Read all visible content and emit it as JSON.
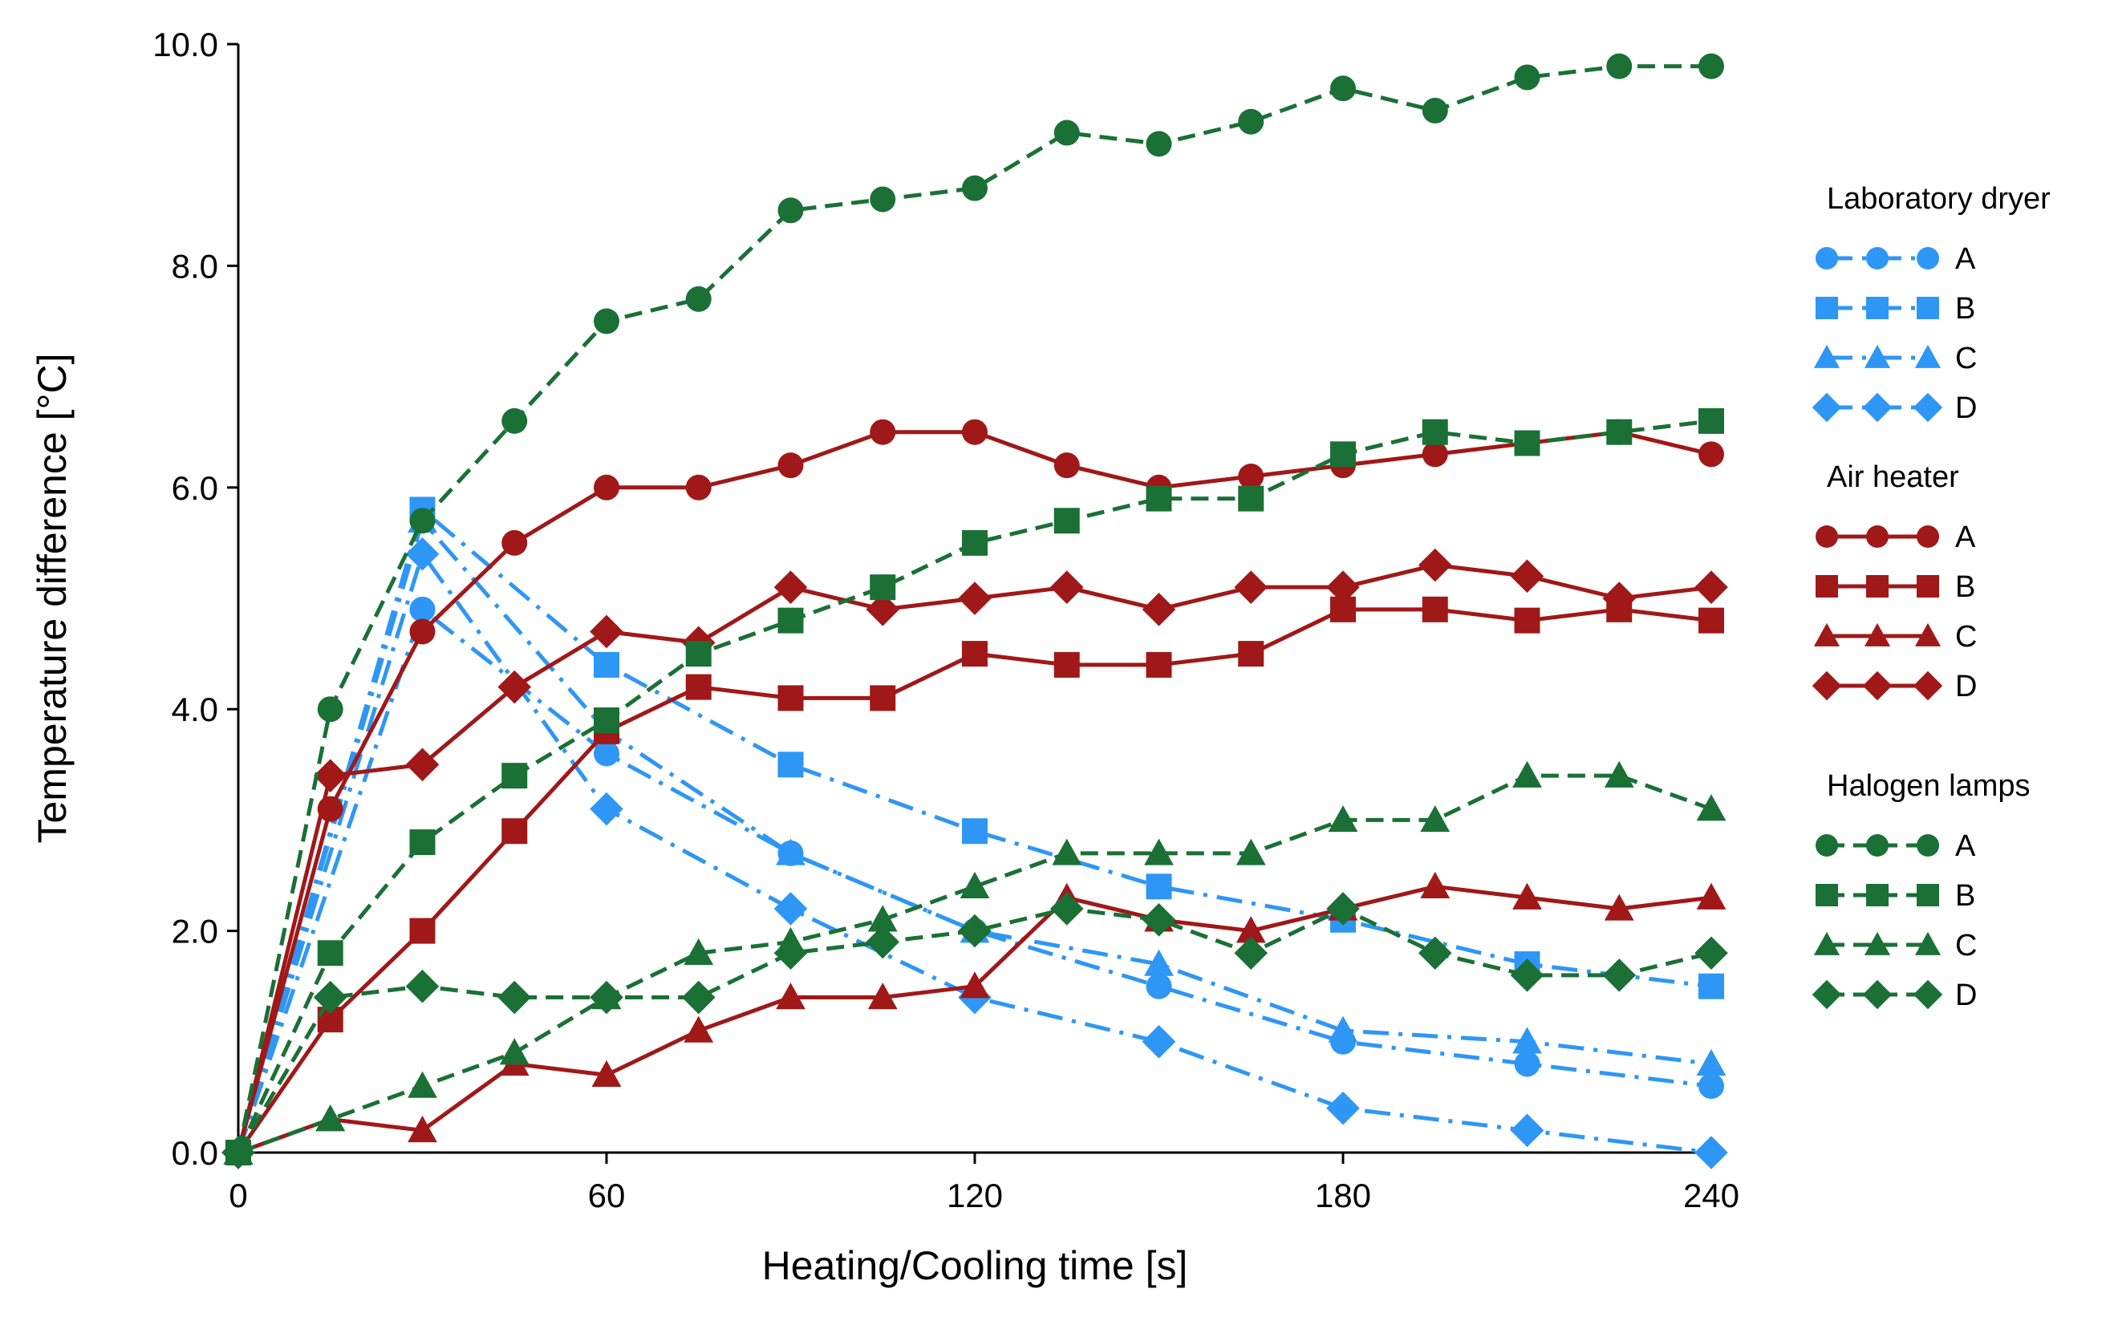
{
  "chart_data": {
    "type": "line",
    "title": "",
    "xlabel": "Heating/Cooling time [s]",
    "ylabel": "Temperature difference [°C]",
    "xlim": [
      0,
      240
    ],
    "ylim": [
      0,
      10
    ],
    "xticks": [
      0,
      60,
      120,
      180,
      240
    ],
    "xtick_labels": [
      "0",
      "60",
      "120",
      "180",
      "240"
    ],
    "yticks": [
      0,
      2,
      4,
      6,
      8,
      10
    ],
    "ytick_labels": [
      "0.0",
      "2.0",
      "4.0",
      "6.0",
      "8.0",
      "10.0"
    ],
    "grid": false,
    "legend_position": "right",
    "groups": [
      {
        "name": "Laboratory dryer",
        "color": "#2e96f5",
        "line_style": "dash-dot",
        "series": [
          {
            "name": "A",
            "marker": "circle",
            "x": [
              0,
              30,
              60,
              90,
              120,
              150,
              180,
              210,
              240
            ],
            "y": [
              0,
              4.9,
              3.6,
              2.7,
              2.0,
              1.5,
              1.0,
              0.8,
              0.6
            ]
          },
          {
            "name": "B",
            "marker": "square",
            "x": [
              0,
              30,
              60,
              90,
              120,
              150,
              180,
              210,
              240
            ],
            "y": [
              0,
              5.8,
              4.4,
              3.5,
              2.9,
              2.4,
              2.1,
              1.7,
              1.5
            ]
          },
          {
            "name": "C",
            "marker": "triangle",
            "x": [
              0,
              30,
              60,
              90,
              120,
              150,
              180,
              210,
              240
            ],
            "y": [
              0,
              5.7,
              3.8,
              2.7,
              2.0,
              1.7,
              1.1,
              1.0,
              0.8
            ]
          },
          {
            "name": "D",
            "marker": "diamond",
            "x": [
              0,
              30,
              60,
              90,
              120,
              150,
              180,
              210,
              240
            ],
            "y": [
              0,
              5.4,
              3.1,
              2.2,
              1.4,
              1.0,
              0.4,
              0.2,
              0.0
            ]
          }
        ]
      },
      {
        "name": "Air heater",
        "color": "#a01818",
        "line_style": "solid",
        "series": [
          {
            "name": "A",
            "marker": "circle",
            "x": [
              0,
              15,
              30,
              45,
              60,
              75,
              90,
              105,
              120,
              135,
              150,
              165,
              180,
              195,
              210,
              225,
              240
            ],
            "y": [
              0,
              3.1,
              4.7,
              5.5,
              6.0,
              6.0,
              6.2,
              6.5,
              6.5,
              6.2,
              6.0,
              6.1,
              6.2,
              6.3,
              6.4,
              6.5,
              6.3
            ]
          },
          {
            "name": "B",
            "marker": "square",
            "x": [
              0,
              15,
              30,
              45,
              60,
              75,
              90,
              105,
              120,
              135,
              150,
              165,
              180,
              195,
              210,
              225,
              240
            ],
            "y": [
              0,
              1.2,
              2.0,
              2.9,
              3.8,
              4.2,
              4.1,
              4.1,
              4.5,
              4.4,
              4.4,
              4.5,
              4.9,
              4.9,
              4.8,
              4.9,
              4.8
            ]
          },
          {
            "name": "C",
            "marker": "triangle",
            "x": [
              0,
              15,
              30,
              45,
              60,
              75,
              90,
              105,
              120,
              135,
              150,
              165,
              180,
              195,
              210,
              225,
              240
            ],
            "y": [
              0,
              0.3,
              0.2,
              0.8,
              0.7,
              1.1,
              1.4,
              1.4,
              1.5,
              2.3,
              2.1,
              2.0,
              2.2,
              2.4,
              2.3,
              2.2,
              2.3
            ]
          },
          {
            "name": "D",
            "marker": "diamond",
            "x": [
              0,
              15,
              30,
              45,
              60,
              75,
              90,
              105,
              120,
              135,
              150,
              165,
              180,
              195,
              210,
              225,
              240
            ],
            "y": [
              0,
              3.4,
              3.5,
              4.2,
              4.7,
              4.6,
              5.1,
              4.9,
              5.0,
              5.1,
              4.9,
              5.1,
              5.1,
              5.3,
              5.2,
              5.0,
              5.1
            ]
          }
        ]
      },
      {
        "name": "Halogen lamps",
        "color": "#1a7035",
        "line_style": "dashed",
        "series": [
          {
            "name": "A",
            "marker": "circle",
            "x": [
              0,
              15,
              30,
              45,
              60,
              75,
              90,
              105,
              120,
              135,
              150,
              165,
              180,
              195,
              210,
              225,
              240
            ],
            "y": [
              0,
              4.0,
              5.7,
              6.6,
              7.5,
              7.7,
              8.5,
              8.6,
              8.7,
              9.2,
              9.1,
              9.3,
              9.6,
              9.4,
              9.7,
              9.8,
              9.8
            ]
          },
          {
            "name": "B",
            "marker": "square",
            "x": [
              0,
              15,
              30,
              45,
              60,
              75,
              90,
              105,
              120,
              135,
              150,
              165,
              180,
              195,
              210,
              225,
              240
            ],
            "y": [
              0,
              1.8,
              2.8,
              3.4,
              3.9,
              4.5,
              4.8,
              5.1,
              5.5,
              5.7,
              5.9,
              5.9,
              6.3,
              6.5,
              6.4,
              6.5,
              6.6
            ]
          },
          {
            "name": "C",
            "marker": "triangle",
            "x": [
              0,
              15,
              30,
              45,
              60,
              75,
              90,
              105,
              120,
              135,
              150,
              165,
              180,
              195,
              210,
              225,
              240
            ],
            "y": [
              0,
              0.3,
              0.6,
              0.9,
              1.4,
              1.8,
              1.9,
              2.1,
              2.4,
              2.7,
              2.7,
              2.7,
              3.0,
              3.0,
              3.4,
              3.4,
              3.1
            ]
          },
          {
            "name": "D",
            "marker": "diamond",
            "x": [
              0,
              15,
              30,
              45,
              60,
              75,
              90,
              105,
              120,
              135,
              150,
              165,
              180,
              195,
              210,
              225,
              240
            ],
            "y": [
              0,
              1.4,
              1.5,
              1.4,
              1.4,
              1.4,
              1.8,
              1.9,
              2.0,
              2.2,
              2.1,
              1.8,
              2.2,
              1.8,
              1.6,
              1.6,
              1.8
            ]
          }
        ]
      }
    ]
  }
}
